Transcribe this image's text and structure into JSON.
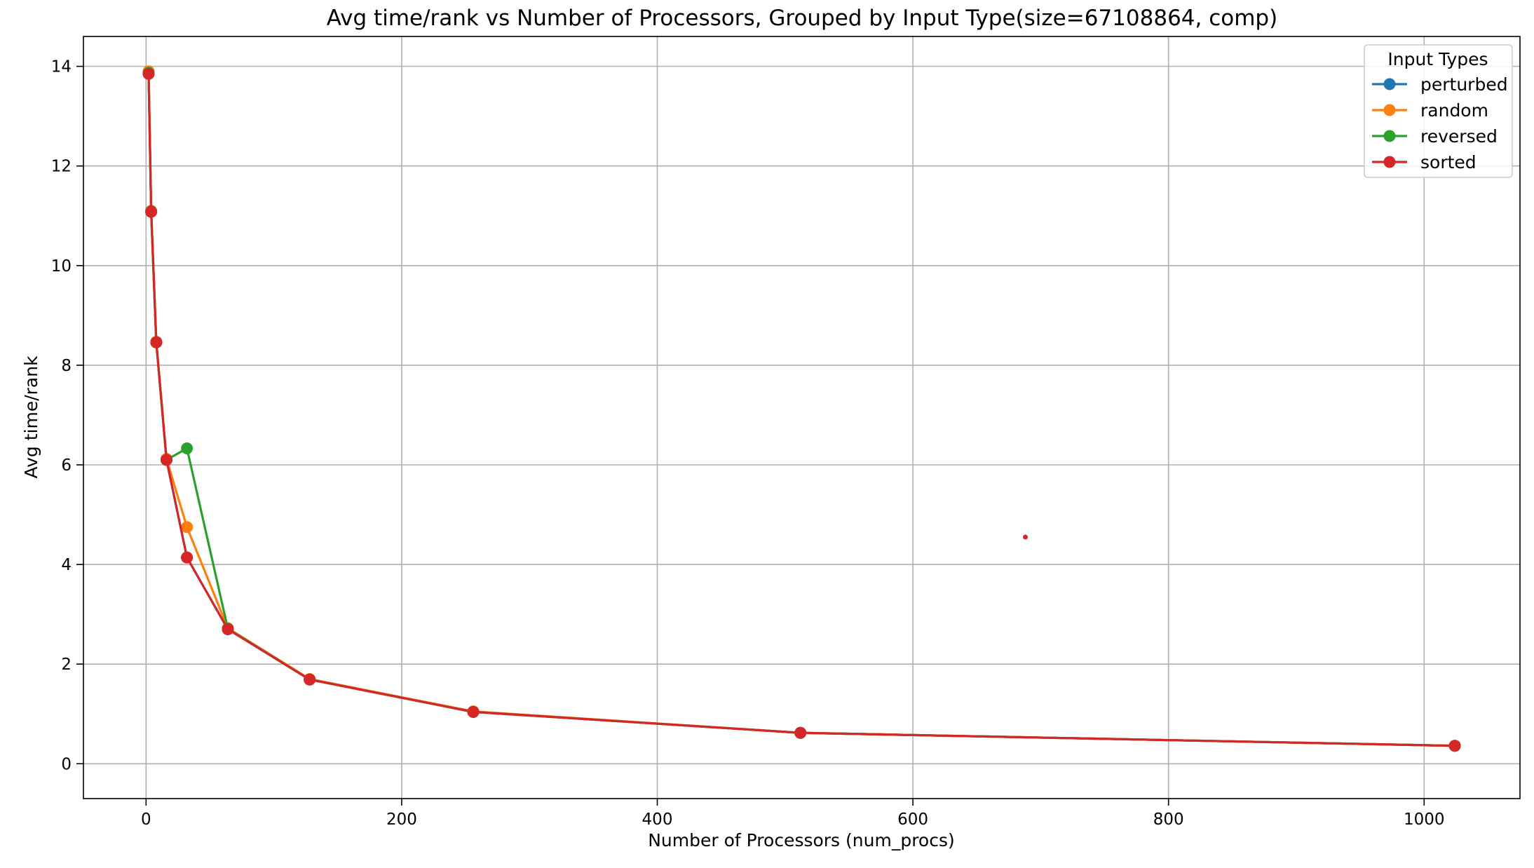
{
  "chart_data": {
    "type": "line",
    "title": "Avg time/rank vs Number of Processors, Grouped by Input Type(size=67108864, comp)",
    "xlabel": "Number of Processors (num_procs)",
    "ylabel": "Avg time/rank",
    "xlim": [
      -49,
      1075
    ],
    "ylim": [
      -0.7,
      14.6
    ],
    "xticks": [
      0,
      200,
      400,
      600,
      800,
      1000
    ],
    "yticks": [
      0,
      2,
      4,
      6,
      8,
      10,
      12,
      14
    ],
    "grid": true,
    "legend_title": "Input Types",
    "legend_position": "top-right",
    "series": [
      {
        "name": "perturbed",
        "color": "#1f77b4",
        "x": [
          2,
          4,
          8,
          16,
          32,
          64,
          128,
          256,
          512,
          1024
        ],
        "y": [
          13.85,
          11.08,
          8.46,
          6.1,
          4.14,
          2.7,
          1.69,
          1.04,
          0.62,
          0.36
        ]
      },
      {
        "name": "random",
        "color": "#ff7f0e",
        "x": [
          2,
          4,
          8,
          16,
          32,
          64,
          128,
          256,
          512,
          1024
        ],
        "y": [
          13.9,
          11.1,
          8.47,
          6.12,
          4.75,
          2.72,
          1.7,
          1.05,
          0.62,
          0.36
        ]
      },
      {
        "name": "reversed",
        "color": "#2ca02c",
        "x": [
          2,
          4,
          8,
          16,
          32,
          64,
          128,
          256,
          512,
          1024
        ],
        "y": [
          13.87,
          11.09,
          8.46,
          6.1,
          6.33,
          2.71,
          1.69,
          1.04,
          0.62,
          0.36
        ]
      },
      {
        "name": "sorted",
        "color": "#d62728",
        "x": [
          2,
          4,
          8,
          16,
          32,
          64,
          128,
          256,
          512,
          1024
        ],
        "y": [
          13.85,
          11.08,
          8.46,
          6.1,
          4.14,
          2.7,
          1.69,
          1.04,
          0.62,
          0.36
        ]
      }
    ],
    "annotations": [
      {
        "type": "point",
        "x": 688,
        "y": 4.55,
        "color": "#d62728"
      }
    ]
  }
}
